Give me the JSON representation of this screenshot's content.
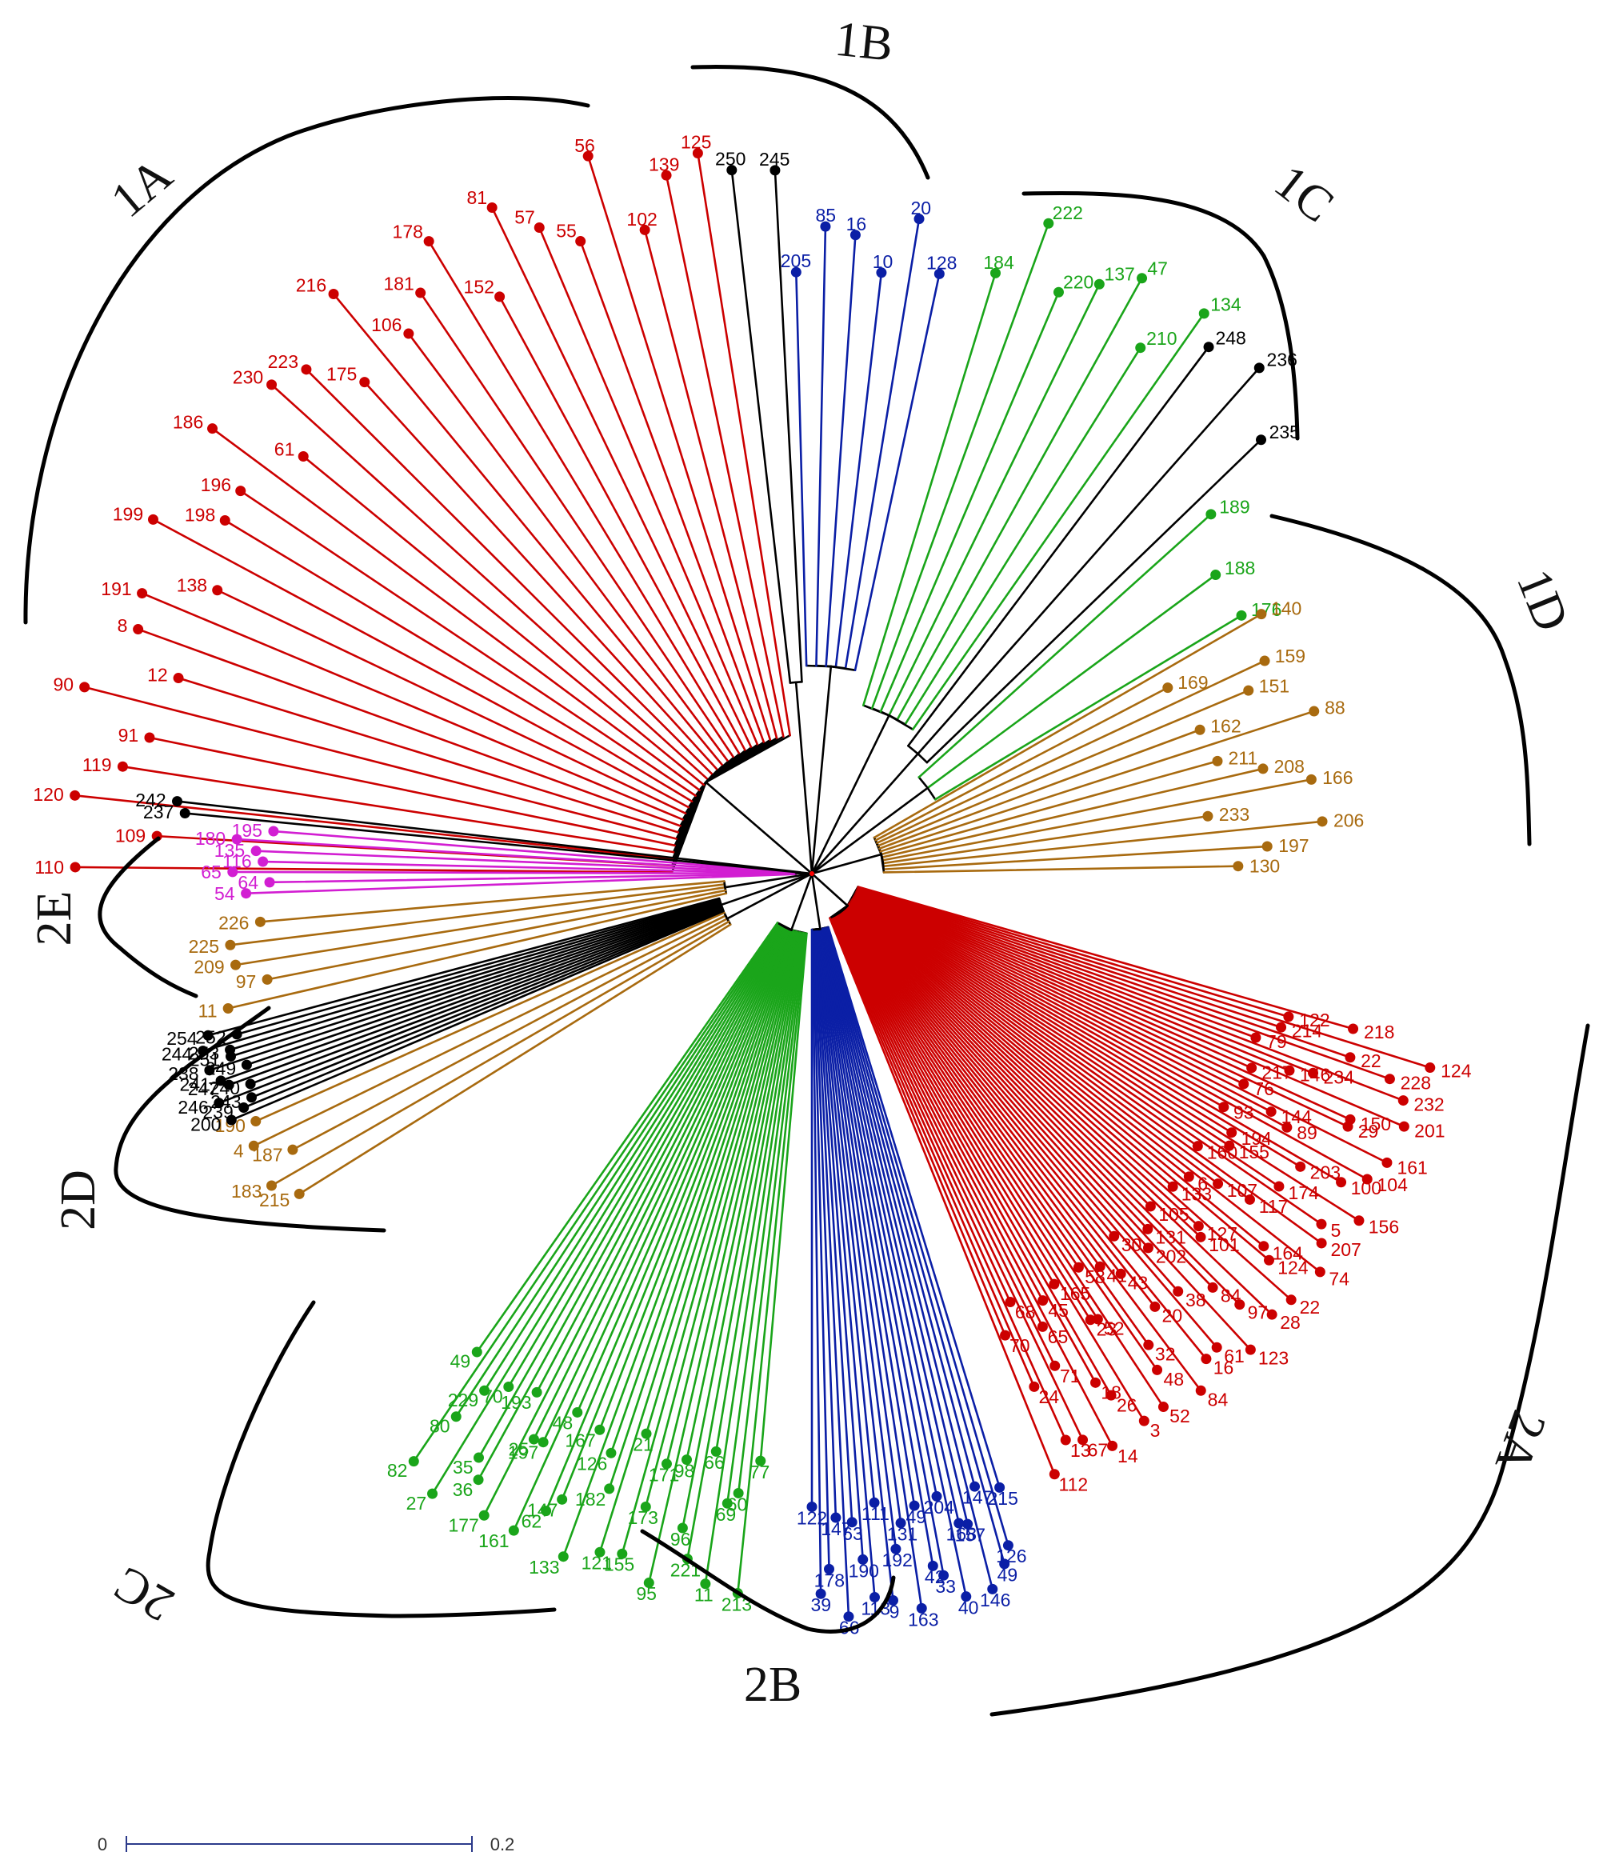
{
  "colors": {
    "red": "#cc0000",
    "blue": "#0b1fa6",
    "green": "#1aa51a",
    "black": "#000000",
    "brown": "#a86a0f",
    "magenta": "#d21ed2",
    "stem": "#000000"
  },
  "scale_bar": {
    "start_label": "0",
    "end_label": "0.2"
  },
  "clusters": [
    {
      "label": "1A"
    },
    {
      "label": "1B"
    },
    {
      "label": "1C"
    },
    {
      "label": "1D"
    },
    {
      "label": "2A"
    },
    {
      "label": "2B"
    },
    {
      "label": "2C"
    },
    {
      "label": "2D"
    },
    {
      "label": "2E"
    }
  ],
  "groups": [
    {
      "cluster": "1A",
      "color": "red",
      "labels": [
        "110",
        "109",
        "120",
        "119",
        "91",
        "90",
        "12",
        "8",
        "191",
        "138",
        "199",
        "198",
        "196",
        "186",
        "61",
        "230",
        "223",
        "175",
        "216",
        "106",
        "181",
        "178",
        "152",
        "81",
        "57",
        "55",
        "56",
        "102",
        "139",
        "125"
      ]
    },
    {
      "cluster": "1B",
      "color": "black",
      "labels": [
        "250",
        "245"
      ]
    },
    {
      "cluster": "1B",
      "color": "blue",
      "labels": [
        "205",
        "85",
        "16",
        "10",
        "20",
        "128"
      ]
    },
    {
      "cluster": "1C",
      "color": "green",
      "labels": [
        "184",
        "222",
        "220",
        "137",
        "47",
        "210",
        "134"
      ]
    },
    {
      "cluster": "1C",
      "color": "black",
      "labels": [
        "248",
        "236",
        "235"
      ]
    },
    {
      "cluster": "1C",
      "color": "green",
      "labels": [
        "189",
        "188",
        "176"
      ]
    },
    {
      "cluster": "1D",
      "color": "brown",
      "labels": [
        "140",
        "169",
        "159",
        "151",
        "162",
        "88",
        "211",
        "208",
        "166",
        "233",
        "206",
        "197",
        "130"
      ]
    },
    {
      "cluster": "2A",
      "color": "red",
      "labels": [
        "218",
        "122",
        "124",
        "214",
        "22",
        "228",
        "79",
        "232",
        "234",
        "146",
        "201",
        "217",
        "150",
        "29",
        "76",
        "161",
        "144",
        "89",
        "104",
        "93",
        "100",
        "203",
        "194",
        "156",
        "155",
        "174",
        "5",
        "160",
        "207",
        "117",
        "107",
        "74",
        "6",
        "164",
        "124",
        "133",
        "22",
        "127",
        "101",
        "28",
        "105",
        "97",
        "84",
        "131",
        "123",
        "202",
        "38",
        "61",
        "30",
        "16",
        "20",
        "43",
        "84",
        "41",
        "32",
        "48",
        "58",
        "52",
        "52",
        "23",
        "3",
        "165",
        "26",
        "18",
        "45",
        "14",
        "65",
        "71",
        "67",
        "68",
        "13",
        "24",
        "70",
        "112"
      ]
    },
    {
      "cluster": "2B",
      "color": "blue",
      "labels": [
        "215",
        "126",
        "49",
        "147",
        "146",
        "157",
        "168",
        "40",
        "204",
        "33",
        "42",
        "49",
        "163",
        "131",
        "192",
        "9",
        "111",
        "113",
        "190",
        "63",
        "66",
        "147",
        "178",
        "39",
        "122"
      ]
    },
    {
      "cluster": "2C",
      "color": "green",
      "labels": [
        "77",
        "213",
        "60",
        "69",
        "11",
        "66",
        "221",
        "96",
        "98",
        "95",
        "171",
        "173",
        "155",
        "21",
        "121",
        "182",
        "126",
        "133",
        "167",
        "147",
        "62",
        "48",
        "161",
        "197",
        "25",
        "177",
        "193",
        "36",
        "35",
        "70",
        "27",
        "229",
        "80",
        "82",
        "49"
      ]
    },
    {
      "cluster": "2D",
      "color": "brown",
      "labels": [
        "215",
        "183",
        "187",
        "4",
        "190"
      ]
    },
    {
      "cluster": "2D",
      "color": "black",
      "labels": [
        "200",
        "239",
        "243",
        "246",
        "240",
        "247",
        "241",
        "249",
        "238",
        "251",
        "253",
        "244",
        "252",
        "254"
      ]
    },
    {
      "cluster": "2D",
      "color": "brown",
      "labels": [
        "11",
        "97",
        "209",
        "225",
        "226"
      ]
    },
    {
      "cluster": "2E",
      "color": "magenta",
      "labels": [
        "54",
        "64",
        "65",
        "116",
        "135",
        "180",
        "195"
      ]
    },
    {
      "cluster": "2E",
      "color": "black",
      "labels": [
        "237",
        "242"
      ]
    }
  ]
}
